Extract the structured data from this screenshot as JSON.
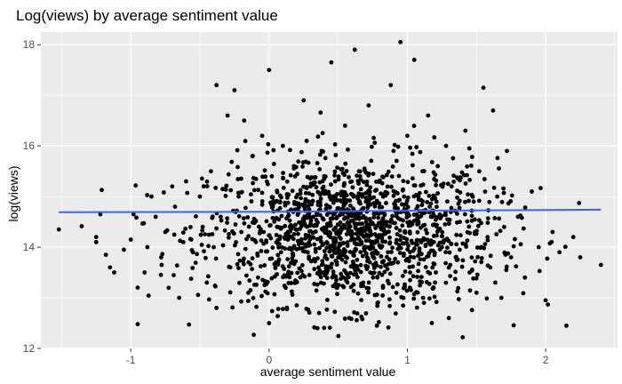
{
  "chart_data": {
    "type": "scatter",
    "title": "Log(views) by average sentiment value",
    "xlabel": "average sentiment value",
    "ylabel": "log(views)",
    "xlim": [
      -1.65,
      2.52
    ],
    "ylim": [
      12.0,
      18.25
    ],
    "x_ticks": [
      -1,
      0,
      1,
      2
    ],
    "y_ticks": [
      12,
      14,
      16,
      18
    ],
    "x_tick_labels": [
      "-1",
      "0",
      "1",
      "2"
    ],
    "y_tick_labels": [
      "12",
      "14",
      "16",
      "18"
    ],
    "grid": true,
    "legend": "none",
    "point_color": "#000000",
    "panel_background": "#ebebeb",
    "grid_color": "#ffffff",
    "fit_line": {
      "color": "#3366ff",
      "points": [
        [
          -1.52,
          14.69
        ],
        [
          0.0,
          14.7
        ],
        [
          1.0,
          14.72
        ],
        [
          2.4,
          14.74
        ]
      ]
    },
    "points_summary": {
      "approx_count": 1500,
      "x_center": 0.6,
      "y_center": 14.3,
      "note": "Dense cloud of observations; representative points listed below."
    },
    "points": [
      [
        -1.52,
        14.35
      ],
      [
        -1.25,
        14.2
      ],
      [
        -1.25,
        14.1
      ],
      [
        -1.22,
        14.65
      ],
      [
        -1.18,
        13.85
      ],
      [
        -1.15,
        13.6
      ],
      [
        -1.12,
        13.5
      ],
      [
        -1.05,
        13.95
      ],
      [
        -1.0,
        14.15
      ],
      [
        -0.98,
        14.65
      ],
      [
        -0.95,
        13.2
      ],
      [
        -0.95,
        12.48
      ],
      [
        -0.9,
        13.5
      ],
      [
        -0.88,
        14.0
      ],
      [
        -0.85,
        15.0
      ],
      [
        -0.82,
        14.6
      ],
      [
        -0.78,
        13.8
      ],
      [
        -0.75,
        14.3
      ],
      [
        -0.7,
        15.2
      ],
      [
        -0.68,
        14.8
      ],
      [
        -0.65,
        13.0
      ],
      [
        -0.62,
        14.1
      ],
      [
        -0.6,
        15.3
      ],
      [
        -0.55,
        13.9
      ],
      [
        -0.5,
        15.0
      ],
      [
        -0.48,
        14.4
      ],
      [
        -0.45,
        13.3
      ],
      [
        -0.42,
        15.5
      ],
      [
        -0.4,
        14.0
      ],
      [
        -0.38,
        12.8
      ],
      [
        -0.38,
        17.2
      ],
      [
        -0.35,
        14.6
      ],
      [
        -0.3,
        16.6
      ],
      [
        -0.28,
        13.6
      ],
      [
        -0.25,
        17.1
      ],
      [
        -0.22,
        15.0
      ],
      [
        -0.2,
        14.3
      ],
      [
        -0.18,
        16.5
      ],
      [
        -0.15,
        13.1
      ],
      [
        -0.12,
        15.8
      ],
      [
        -0.1,
        14.5
      ],
      [
        -0.08,
        13.4
      ],
      [
        -0.05,
        16.2
      ],
      [
        -0.02,
        14.1
      ],
      [
        0.0,
        12.5
      ],
      [
        0.0,
        17.5
      ],
      [
        0.02,
        15.4
      ],
      [
        0.05,
        13.7
      ],
      [
        0.08,
        14.9
      ],
      [
        0.1,
        16.0
      ],
      [
        0.12,
        13.2
      ],
      [
        0.15,
        14.4
      ],
      [
        0.18,
        15.6
      ],
      [
        0.2,
        12.85
      ],
      [
        0.22,
        14.1
      ],
      [
        0.25,
        16.9
      ],
      [
        0.28,
        13.9
      ],
      [
        0.3,
        15.2
      ],
      [
        0.32,
        14.6
      ],
      [
        0.35,
        12.4
      ],
      [
        0.38,
        15.9
      ],
      [
        0.4,
        13.5
      ],
      [
        0.42,
        14.3
      ],
      [
        0.45,
        17.65
      ],
      [
        0.48,
        15.0
      ],
      [
        0.5,
        13.8
      ],
      [
        0.52,
        14.7
      ],
      [
        0.55,
        16.4
      ],
      [
        0.58,
        12.6
      ],
      [
        0.6,
        14.2
      ],
      [
        0.62,
        17.9
      ],
      [
        0.65,
        15.5
      ],
      [
        0.68,
        13.3
      ],
      [
        0.7,
        14.9
      ],
      [
        0.72,
        16.8
      ],
      [
        0.75,
        14.0
      ],
      [
        0.78,
        12.45
      ],
      [
        0.8,
        15.3
      ],
      [
        0.82,
        13.7
      ],
      [
        0.85,
        14.5
      ],
      [
        0.88,
        17.2
      ],
      [
        0.9,
        15.9
      ],
      [
        0.92,
        13.1
      ],
      [
        0.95,
        18.05
      ],
      [
        0.98,
        14.3
      ],
      [
        1.0,
        16.2
      ],
      [
        1.02,
        13.5
      ],
      [
        1.05,
        17.7
      ],
      [
        1.08,
        15.0
      ],
      [
        1.1,
        14.1
      ],
      [
        1.12,
        12.9
      ],
      [
        1.15,
        16.6
      ],
      [
        1.18,
        14.6
      ],
      [
        1.2,
        13.3
      ],
      [
        1.22,
        15.6
      ],
      [
        1.25,
        14.0
      ],
      [
        1.28,
        16.0
      ],
      [
        1.3,
        12.6
      ],
      [
        1.32,
        15.2
      ],
      [
        1.35,
        13.8
      ],
      [
        1.38,
        14.5
      ],
      [
        1.4,
        12.22
      ],
      [
        1.42,
        16.3
      ],
      [
        1.45,
        13.5
      ],
      [
        1.48,
        14.9
      ],
      [
        1.5,
        13.1
      ],
      [
        1.52,
        15.5
      ],
      [
        1.55,
        17.15
      ],
      [
        1.58,
        14.2
      ],
      [
        1.6,
        13.6
      ],
      [
        1.62,
        16.7
      ],
      [
        1.65,
        15.0
      ],
      [
        1.68,
        13.0
      ],
      [
        1.7,
        14.4
      ],
      [
        1.72,
        15.9
      ],
      [
        1.75,
        13.8
      ],
      [
        1.8,
        14.6
      ],
      [
        1.85,
        13.4
      ],
      [
        1.9,
        15.1
      ],
      [
        1.95,
        14.0
      ],
      [
        2.0,
        12.95
      ],
      [
        2.05,
        14.3
      ],
      [
        2.1,
        13.9
      ],
      [
        2.15,
        12.45
      ],
      [
        2.2,
        14.2
      ],
      [
        2.25,
        13.8
      ],
      [
        2.4,
        13.65
      ]
    ]
  }
}
